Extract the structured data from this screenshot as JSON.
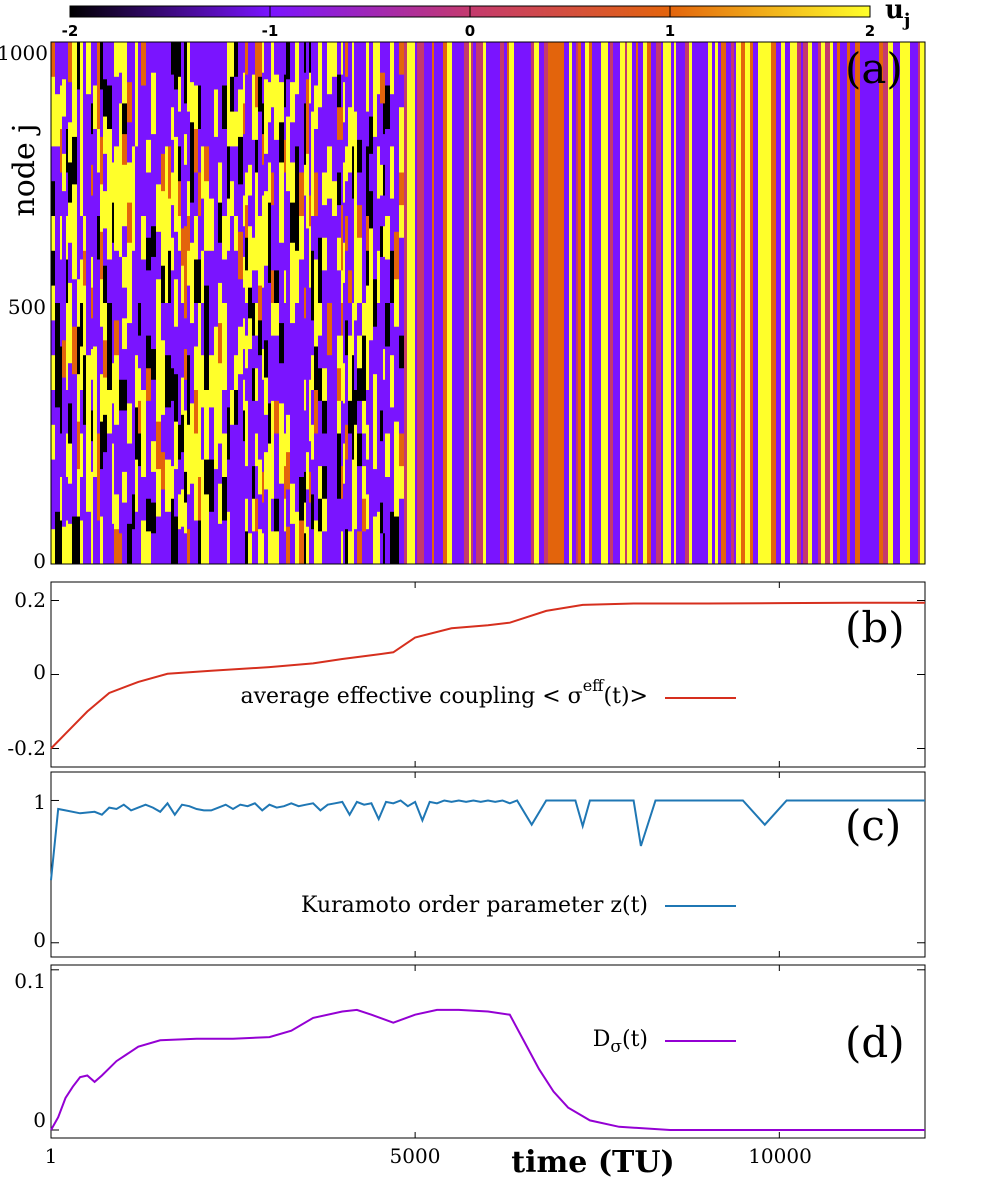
{
  "chart_data": [
    {
      "panel": "(a)",
      "type": "heatmap",
      "ylabel": "node j",
      "y_ticks": [
        "0",
        "500",
        "1000"
      ],
      "ylim": [
        0,
        1000
      ],
      "xlim": [
        1,
        12000
      ],
      "colorbar": {
        "label_main": "u",
        "label_sub": "j",
        "ticks": [
          "-2",
          "-1",
          "0",
          "1",
          "2"
        ],
        "range": [
          -2,
          2
        ],
        "colors": [
          "#000000",
          "#7a14ff",
          "#c43a6e",
          "#e3640c",
          "#ffff2a"
        ]
      }
    },
    {
      "panel": "(b)",
      "type": "line",
      "y_ticks": [
        "-0.2",
        "0",
        "0.2"
      ],
      "ylim": [
        -0.25,
        0.25
      ],
      "xlim": [
        1,
        12000
      ],
      "legend_text": "average effective coupling < σ",
      "legend_sup": "eff",
      "legend_suffix": "(t)>",
      "series": [
        {
          "name": "average effective coupling <σeff(t)>",
          "color": "#d62f1e",
          "x": [
            1,
            200,
            500,
            800,
            1200,
            1600,
            2200,
            3000,
            3600,
            4000,
            4400,
            4700,
            5000,
            5500,
            6000,
            6300,
            6800,
            7300,
            8000,
            9000,
            10000,
            11000,
            12000
          ],
          "y": [
            -0.2,
            -0.16,
            -0.1,
            -0.05,
            -0.02,
            0.002,
            0.01,
            0.02,
            0.03,
            0.042,
            0.052,
            0.06,
            0.1,
            0.125,
            0.133,
            0.14,
            0.172,
            0.188,
            0.192,
            0.192,
            0.193,
            0.194,
            0.194
          ]
        }
      ]
    },
    {
      "panel": "(c)",
      "type": "line",
      "y_ticks": [
        "0",
        "1"
      ],
      "ylim": [
        -0.1,
        1.2
      ],
      "xlim": [
        1,
        12000
      ],
      "legend_text": "Kuramoto order parameter z(t)",
      "series": [
        {
          "name": "Kuramoto order parameter z(t)",
          "color": "#1f77b4",
          "x": [
            1,
            100,
            200,
            400,
            600,
            700,
            800,
            900,
            1000,
            1100,
            1200,
            1300,
            1400,
            1500,
            1600,
            1700,
            1800,
            1900,
            2000,
            2100,
            2200,
            2300,
            2400,
            2500,
            2600,
            2700,
            2800,
            2900,
            3000,
            3100,
            3200,
            3300,
            3400,
            3500,
            3600,
            3700,
            3800,
            3900,
            4000,
            4100,
            4200,
            4300,
            4400,
            4500,
            4600,
            4700,
            4800,
            4900,
            5000,
            5100,
            5200,
            5300,
            5400,
            5500,
            5600,
            5700,
            5800,
            5900,
            6000,
            6100,
            6200,
            6300,
            6400,
            6600,
            6800,
            7000,
            7200,
            7300,
            7400,
            7600,
            7800,
            8000,
            8100,
            8300,
            8500,
            8700,
            8900,
            9000,
            9100,
            9300,
            9500,
            9800,
            10100,
            10300,
            10400,
            10500,
            10700,
            11000,
            11500,
            12000
          ],
          "y": [
            0.44,
            0.94,
            0.93,
            0.91,
            0.92,
            0.9,
            0.95,
            0.94,
            0.97,
            0.93,
            0.95,
            0.97,
            0.95,
            0.92,
            0.98,
            0.9,
            0.97,
            0.96,
            0.94,
            0.93,
            0.93,
            0.95,
            0.97,
            0.94,
            0.97,
            0.96,
            0.98,
            0.93,
            0.97,
            0.95,
            0.96,
            0.98,
            0.96,
            0.97,
            0.98,
            0.93,
            0.97,
            0.98,
            0.99,
            0.9,
            0.99,
            0.97,
            0.98,
            0.87,
            0.99,
            0.98,
            1.0,
            0.96,
            0.99,
            0.86,
            0.99,
            0.98,
            1.0,
            0.99,
            1.0,
            0.99,
            1.0,
            0.99,
            1.0,
            0.99,
            1.0,
            0.98,
            1.0,
            0.83,
            1.0,
            1.0,
            1.0,
            0.82,
            1.0,
            1.0,
            1.0,
            1.0,
            0.68,
            1.0,
            1.0,
            1.0,
            1.0,
            1.0,
            1.0,
            1.0,
            1.0,
            0.83,
            1.0,
            1.0,
            1.0,
            1.0,
            1.0,
            1.0,
            1.0,
            1.0
          ]
        }
      ]
    },
    {
      "panel": "(d)",
      "type": "line",
      "y_ticks": [
        "0",
        "0.1"
      ],
      "ylim": [
        -0.005,
        0.103
      ],
      "xlim": [
        1,
        12000
      ],
      "xlabel": "time (TU)",
      "x_ticks": [
        "1",
        "5000",
        "10000"
      ],
      "legend_text": "D",
      "legend_sub": "σ",
      "legend_suffix": "(t)",
      "series": [
        {
          "name": "Dσ(t)",
          "color": "#9400d3",
          "x": [
            1,
            100,
            200,
            300,
            400,
            500,
            600,
            700,
            900,
            1200,
            1500,
            2000,
            2500,
            3000,
            3300,
            3600,
            4000,
            4200,
            4400,
            4700,
            5000,
            5300,
            5600,
            6000,
            6300,
            6500,
            6700,
            6900,
            7100,
            7400,
            7800,
            8500,
            9000,
            10000,
            11000,
            11500,
            12000
          ],
          "y": [
            0.0,
            0.008,
            0.02,
            0.027,
            0.033,
            0.034,
            0.03,
            0.034,
            0.043,
            0.052,
            0.056,
            0.057,
            0.057,
            0.058,
            0.062,
            0.07,
            0.074,
            0.075,
            0.072,
            0.067,
            0.072,
            0.075,
            0.075,
            0.074,
            0.072,
            0.055,
            0.038,
            0.024,
            0.014,
            0.006,
            0.002,
            0.0,
            0.0,
            0.0,
            0.0,
            0.0,
            0.0
          ]
        }
      ]
    }
  ]
}
